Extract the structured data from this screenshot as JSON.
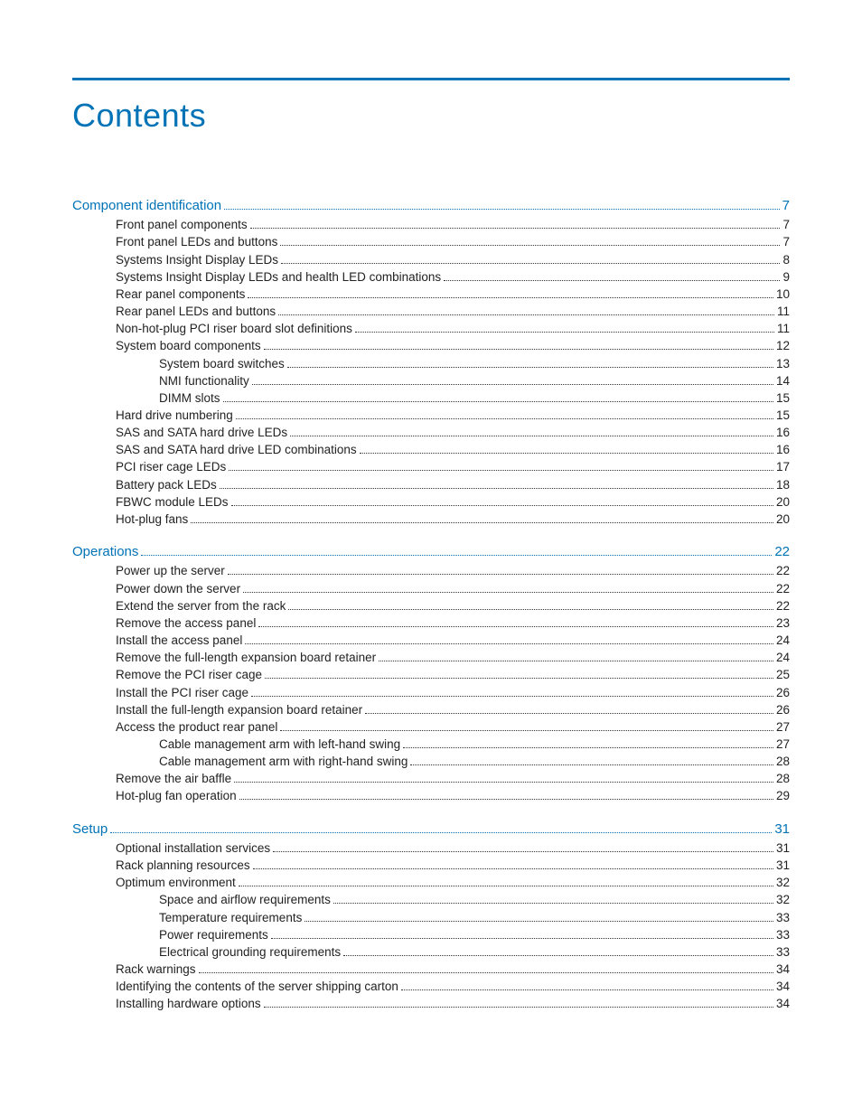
{
  "title": "Contents",
  "colors": {
    "accent": "#0073b7",
    "text": "#222222"
  },
  "sections": [
    {
      "heading": {
        "label": "Component identification",
        "page": "7"
      },
      "entries": [
        {
          "level": 1,
          "label": "Front panel components",
          "page": "7"
        },
        {
          "level": 1,
          "label": "Front panel LEDs and buttons",
          "page": "7"
        },
        {
          "level": 1,
          "label": "Systems Insight Display LEDs",
          "page": "8"
        },
        {
          "level": 1,
          "label": "Systems Insight Display LEDs and health LED combinations",
          "page": "9"
        },
        {
          "level": 1,
          "label": "Rear panel components",
          "page": "10"
        },
        {
          "level": 1,
          "label": "Rear panel LEDs and buttons",
          "page": "11"
        },
        {
          "level": 1,
          "label": "Non-hot-plug PCI riser board slot definitions",
          "page": "11"
        },
        {
          "level": 1,
          "label": "System board components",
          "page": "12"
        },
        {
          "level": 2,
          "label": "System board switches",
          "page": "13"
        },
        {
          "level": 2,
          "label": "NMI functionality",
          "page": "14"
        },
        {
          "level": 2,
          "label": "DIMM slots",
          "page": "15"
        },
        {
          "level": 1,
          "label": "Hard drive numbering",
          "page": "15"
        },
        {
          "level": 1,
          "label": "SAS and SATA hard drive LEDs",
          "page": "16"
        },
        {
          "level": 1,
          "label": "SAS and SATA hard drive LED combinations",
          "page": "16"
        },
        {
          "level": 1,
          "label": "PCI riser cage LEDs",
          "page": "17"
        },
        {
          "level": 1,
          "label": "Battery pack LEDs",
          "page": "18"
        },
        {
          "level": 1,
          "label": "FBWC module LEDs",
          "page": "20"
        },
        {
          "level": 1,
          "label": "Hot-plug fans",
          "page": "20"
        }
      ]
    },
    {
      "heading": {
        "label": "Operations",
        "page": "22"
      },
      "entries": [
        {
          "level": 1,
          "label": "Power up the server",
          "page": "22"
        },
        {
          "level": 1,
          "label": "Power down the server",
          "page": "22"
        },
        {
          "level": 1,
          "label": "Extend the server from the rack",
          "page": "22"
        },
        {
          "level": 1,
          "label": "Remove the access panel",
          "page": "23"
        },
        {
          "level": 1,
          "label": "Install the access panel",
          "page": "24"
        },
        {
          "level": 1,
          "label": "Remove the full-length expansion board retainer",
          "page": "24"
        },
        {
          "level": 1,
          "label": "Remove the PCI riser cage",
          "page": "25"
        },
        {
          "level": 1,
          "label": "Install the PCI riser cage",
          "page": "26"
        },
        {
          "level": 1,
          "label": "Install the full-length expansion board retainer",
          "page": "26"
        },
        {
          "level": 1,
          "label": "Access the product rear panel",
          "page": "27"
        },
        {
          "level": 2,
          "label": "Cable management arm with left-hand swing",
          "page": "27"
        },
        {
          "level": 2,
          "label": "Cable management arm with right-hand swing",
          "page": "28"
        },
        {
          "level": 1,
          "label": "Remove the air baffle",
          "page": "28"
        },
        {
          "level": 1,
          "label": "Hot-plug fan operation",
          "page": "29"
        }
      ]
    },
    {
      "heading": {
        "label": "Setup",
        "page": "31"
      },
      "entries": [
        {
          "level": 1,
          "label": "Optional installation services",
          "page": "31"
        },
        {
          "level": 1,
          "label": "Rack planning resources",
          "page": "31"
        },
        {
          "level": 1,
          "label": "Optimum environment",
          "page": "32"
        },
        {
          "level": 2,
          "label": "Space and airflow requirements",
          "page": "32"
        },
        {
          "level": 2,
          "label": "Temperature requirements",
          "page": "33"
        },
        {
          "level": 2,
          "label": "Power requirements",
          "page": "33"
        },
        {
          "level": 2,
          "label": "Electrical grounding requirements",
          "page": "33"
        },
        {
          "level": 1,
          "label": "Rack warnings",
          "page": "34"
        },
        {
          "level": 1,
          "label": "Identifying the contents of the server shipping carton",
          "page": "34"
        },
        {
          "level": 1,
          "label": "Installing hardware options",
          "page": "34"
        }
      ]
    }
  ]
}
